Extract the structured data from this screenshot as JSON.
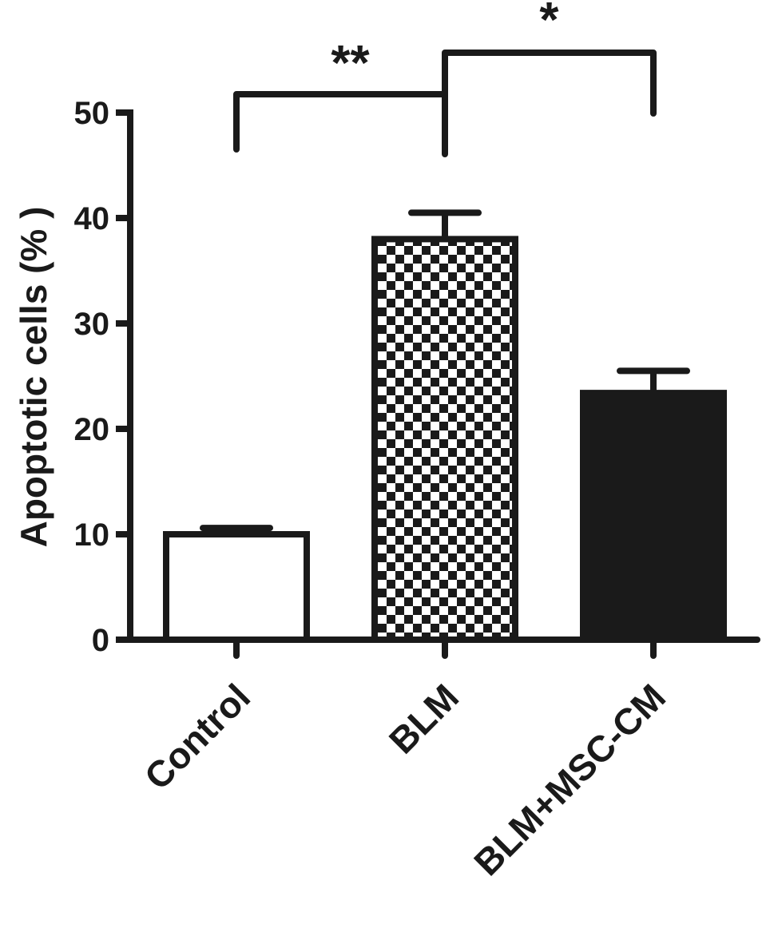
{
  "chart_data": {
    "type": "bar",
    "title": "",
    "xlabel": "",
    "ylabel": "Apoptotic cells (% )",
    "ylim": [
      0,
      50
    ],
    "yticks": [
      0,
      10,
      20,
      30,
      40,
      50
    ],
    "grid": false,
    "legend": "none",
    "categories": [
      "Control",
      "BLM",
      "BLM+MSC-CM"
    ],
    "values": [
      10,
      38,
      23.4
    ],
    "errors": [
      0.6,
      2.5,
      2.1
    ],
    "fills": [
      "white",
      "checkerboard",
      "black"
    ],
    "significance": [
      {
        "from": 0,
        "to": 1,
        "label": "**"
      },
      {
        "from": 1,
        "to": 2,
        "label": "*"
      }
    ]
  },
  "colors": {
    "ink": "#1a1a1a",
    "background": "#ffffff"
  }
}
